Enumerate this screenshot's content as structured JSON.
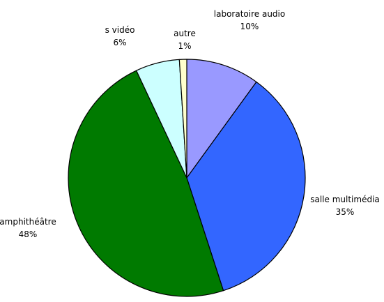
{
  "chart_data": {
    "type": "pie",
    "title": "",
    "start_angle_deg": 0,
    "direction": "clockwise",
    "legend": "none",
    "slices": [
      {
        "label": "laboratoire audio",
        "value": 10,
        "percent_label": "10%",
        "color": "#9999ff"
      },
      {
        "label": "salle multimédia",
        "value": 35,
        "percent_label": "35%",
        "color": "#3366ff"
      },
      {
        "label": "amphithéâtre",
        "value": 48,
        "percent_label": "48%",
        "color": "#007a00"
      },
      {
        "label": "s vidéo",
        "value": 6,
        "percent_label": "6%",
        "color": "#ccffff"
      },
      {
        "label": "autre",
        "value": 1,
        "percent_label": "1%",
        "color": "#ffffcc"
      }
    ]
  }
}
